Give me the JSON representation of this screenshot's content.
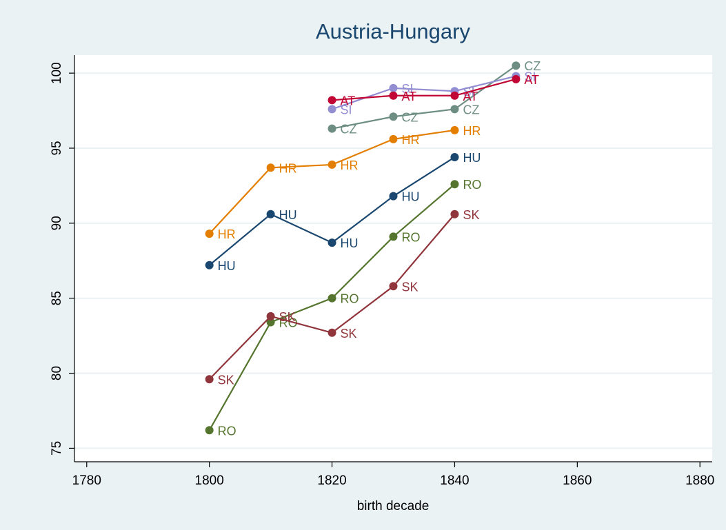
{
  "chart_data": {
    "type": "line",
    "title": "Austria-Hungary",
    "x_label": "birth decade",
    "xlim": [
      1778,
      1882
    ],
    "xticks": [
      1780,
      1800,
      1820,
      1840,
      1860,
      1880
    ],
    "ylim": [
      74.1,
      101.2
    ],
    "yticks": [
      75,
      80,
      85,
      90,
      95,
      100
    ],
    "grid": true,
    "series": [
      {
        "name": "HU",
        "color": "#1a476f",
        "x": [
          1800,
          1810,
          1820,
          1830,
          1840
        ],
        "values": [
          87.2,
          90.6,
          88.7,
          91.8,
          94.4
        ]
      },
      {
        "name": "HR",
        "color": "#e37e00",
        "x": [
          1800,
          1810,
          1820,
          1830,
          1840
        ],
        "values": [
          89.3,
          93.7,
          93.9,
          95.6,
          96.2
        ]
      },
      {
        "name": "RO",
        "color": "#55752f",
        "x": [
          1800,
          1810,
          1820,
          1830,
          1840
        ],
        "values": [
          76.2,
          83.4,
          85.0,
          89.1,
          92.6
        ]
      },
      {
        "name": "SK",
        "color": "#90353b",
        "x": [
          1800,
          1810,
          1820,
          1830,
          1840
        ],
        "values": [
          79.6,
          83.8,
          82.7,
          85.8,
          90.6
        ]
      },
      {
        "name": "CZ",
        "color": "#6e8e84",
        "x": [
          1820,
          1830,
          1840,
          1850
        ],
        "values": [
          96.3,
          97.1,
          97.6,
          100.5
        ]
      },
      {
        "name": "SI",
        "color": "#938dd2",
        "x": [
          1820,
          1830,
          1840,
          1850
        ],
        "values": [
          97.6,
          99.0,
          98.8,
          99.8
        ]
      },
      {
        "name": "AT",
        "color": "#c10534",
        "x": [
          1820,
          1830,
          1840,
          1850
        ],
        "values": [
          98.2,
          98.5,
          98.5,
          99.6
        ]
      }
    ]
  }
}
